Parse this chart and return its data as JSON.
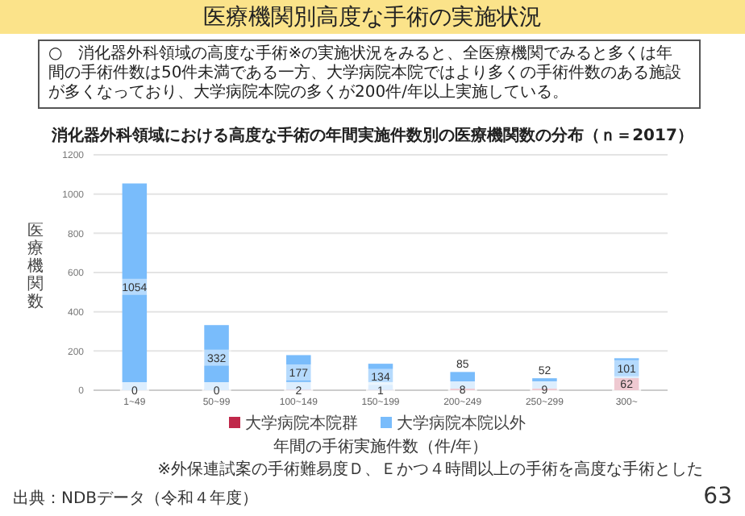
{
  "chart_data": {
    "type": "bar",
    "title": "医療機関別高度な手術の実施状況",
    "subtitle": "消化器外科領域における高度な手術の年間実施件数別の医療機関数の分布（ｎ＝2017）",
    "annotations": [
      "○　消化器外科領域の高度な手術※の実施状況をみると、全医療機関でみると多くは年間の手術件数は50件未満である一方、大学病院本院ではより多くの手術件数のある施設が多くなっており、大学病院本院の多くが200件/年以上実施している。",
      "出典：NDBデータ（令和４年度）",
      "※外保連試案の手術難易度Ｄ、Ｅかつ４時間以上の手術を高度な手術とした",
      "63"
    ],
    "xlabel": "年間の手術実施件数（件/年）",
    "ylabel": "医療機関数",
    "categories": [
      "1~49",
      "50~99",
      "100~149",
      "150~199",
      "200~249",
      "250~299",
      "300~"
    ],
    "stacked": true,
    "series": [
      {
        "name": "大学病院本院群",
        "color": "#c0284a",
        "values": [
          0,
          0,
          2,
          1,
          8,
          9,
          62
        ]
      },
      {
        "name": "大学病院本院以外",
        "color": "#79bcfb",
        "values": [
          1054,
          332,
          177,
          134,
          85,
          52,
          101
        ]
      }
    ],
    "ylim": [
      0,
      1200
    ],
    "yticks": [
      0,
      200,
      400,
      600,
      800,
      1000,
      1200
    ],
    "grid": "y",
    "legend": "bottom",
    "data_labels": true
  }
}
